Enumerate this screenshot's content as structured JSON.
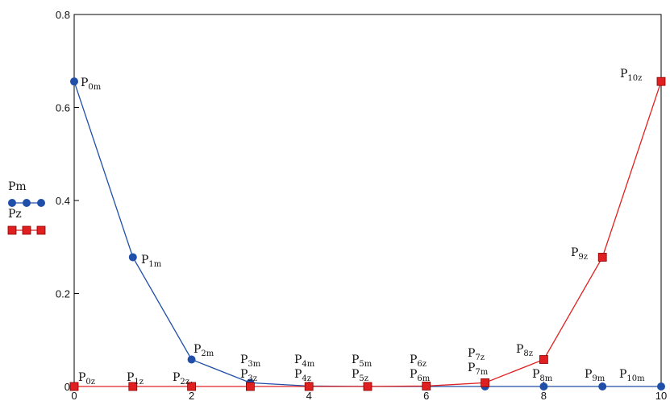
{
  "chart_data": {
    "type": "line",
    "x": [
      0,
      1,
      2,
      3,
      4,
      5,
      6,
      7,
      8,
      9,
      10
    ],
    "xlim": [
      0,
      10
    ],
    "ylim": [
      0,
      0.8
    ],
    "xticks": [
      0,
      2,
      4,
      6,
      8,
      10
    ],
    "yticks": [
      0,
      0.2,
      0.4,
      0.6,
      0.8
    ],
    "xtick_labels": [
      "0",
      "2",
      "4",
      "6",
      "8",
      "10"
    ],
    "ytick_labels": [
      "0",
      "0.2",
      "0.4",
      "0.6",
      "0.8"
    ],
    "grid": false,
    "legend_position": "left",
    "series": [
      {
        "name": "Pm",
        "color": "#1f4fa8",
        "marker": "circle",
        "values": [
          0.656,
          0.278,
          0.058,
          0.008,
          0.001,
          0.0,
          0.0,
          0.0,
          0.0,
          0.0,
          0.0
        ],
        "point_labels": [
          {
            "base": "P",
            "sub": "0m"
          },
          {
            "base": "P",
            "sub": "1m"
          },
          {
            "base": "P",
            "sub": "2m"
          },
          {
            "base": "P",
            "sub": "3m"
          },
          {
            "base": "P",
            "sub": "4m"
          },
          {
            "base": "P",
            "sub": "5m"
          },
          {
            "base": "P",
            "sub": "6m"
          },
          {
            "base": "P",
            "sub": "7m"
          },
          {
            "base": "P",
            "sub": "8m"
          },
          {
            "base": "P",
            "sub": "9m"
          },
          {
            "base": "P",
            "sub": "10m"
          }
        ]
      },
      {
        "name": "Pz",
        "color": "#e02020",
        "marker": "square",
        "values": [
          0.0,
          0.0,
          0.0,
          0.0,
          0.0,
          0.0,
          0.001,
          0.008,
          0.058,
          0.278,
          0.656
        ],
        "point_labels": [
          {
            "base": "P",
            "sub": "0z"
          },
          {
            "base": "P",
            "sub": "1z"
          },
          {
            "base": "P",
            "sub": "2z"
          },
          {
            "base": "P",
            "sub": "3z"
          },
          {
            "base": "P",
            "sub": "4z"
          },
          {
            "base": "P",
            "sub": "5z"
          },
          {
            "base": "P",
            "sub": "6z"
          },
          {
            "base": "P",
            "sub": "7z"
          },
          {
            "base": "P",
            "sub": "8z"
          },
          {
            "base": "P",
            "sub": "9z"
          },
          {
            "base": "P",
            "sub": "10z"
          }
        ]
      }
    ]
  }
}
